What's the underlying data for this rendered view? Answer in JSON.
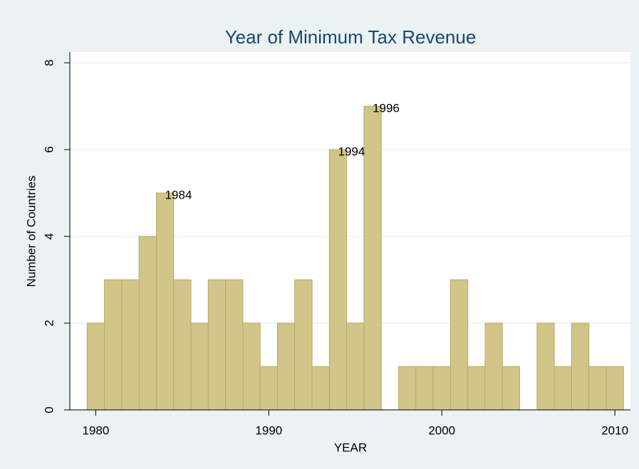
{
  "chart_data": {
    "type": "histogram",
    "title": "Year of Minimum Tax Revenue",
    "x_label": "YEAR",
    "y_label": "Number of Countries",
    "bins": [
      1979.5,
      1980.5,
      1981.5,
      1982.5,
      1983.5,
      1984.5,
      1985.5,
      1986.5,
      1987.5,
      1988.5,
      1989.5,
      1990.5,
      1991.5,
      1992.5,
      1993.5,
      1994.5,
      1995.5,
      1996.5,
      1997.5,
      1998.5,
      1999.5,
      2000.5,
      2001.5,
      2002.5,
      2003.5,
      2004.5,
      2005.5,
      2006.5,
      2007.5,
      2008.5,
      2009.5,
      2010.5
    ],
    "values": [
      2,
      3,
      3,
      4,
      5,
      3,
      2,
      3,
      3,
      2,
      1,
      2,
      3,
      1,
      6,
      2,
      7,
      0,
      1,
      1,
      1,
      3,
      1,
      2,
      1,
      0,
      2,
      1,
      2,
      1,
      1
    ],
    "color": "#d1c58a",
    "edge_color": "#b8aa62",
    "xlim": [
      1978.5,
      2010.9
    ],
    "xticks": [
      1980,
      1990,
      2000,
      2010
    ],
    "ylim": [
      0,
      8.25
    ],
    "yticks": [
      0,
      2,
      4,
      6,
      8
    ],
    "grid": true,
    "annotations": [
      {
        "text": "1984",
        "x": 1984,
        "y": 5
      },
      {
        "text": "1994",
        "x": 1994,
        "y": 6
      },
      {
        "text": "1996",
        "x": 1996,
        "y": 7
      }
    ]
  }
}
